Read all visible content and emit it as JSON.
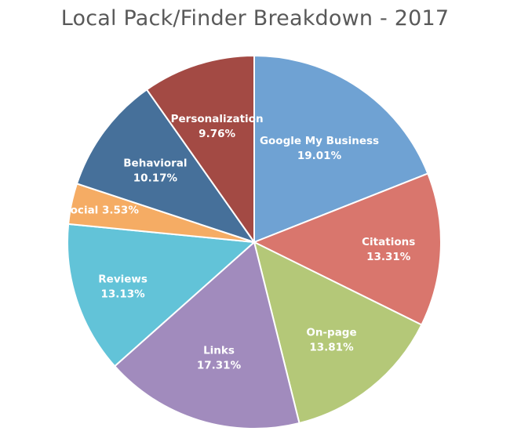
{
  "chart_data": {
    "type": "pie",
    "title": "Local Pack/Finder Breakdown - 2017",
    "slices": [
      {
        "name": "Google My Business",
        "value": 19.01,
        "display": "19.01%",
        "color": "#6fa2d3"
      },
      {
        "name": "Citations",
        "value": 13.31,
        "display": "13.31%",
        "color": "#d9766d"
      },
      {
        "name": "On-page",
        "value": 13.81,
        "display": "13.81%",
        "color": "#b4c878"
      },
      {
        "name": "Links",
        "value": 17.31,
        "display": "17.31%",
        "color": "#a18bbd"
      },
      {
        "name": "Reviews",
        "value": 13.13,
        "display": "13.13%",
        "color": "#62c3d8"
      },
      {
        "name": "Social",
        "value": 3.53,
        "display": "3.53%",
        "color": "#f5ac64"
      },
      {
        "name": "Behavioral",
        "value": 10.17,
        "display": "10.17%",
        "color": "#46709a"
      },
      {
        "name": "Personalization",
        "value": 9.76,
        "display": "9.76%",
        "color": "#a34a44"
      }
    ],
    "legend": "none",
    "data_labels": "inside"
  }
}
